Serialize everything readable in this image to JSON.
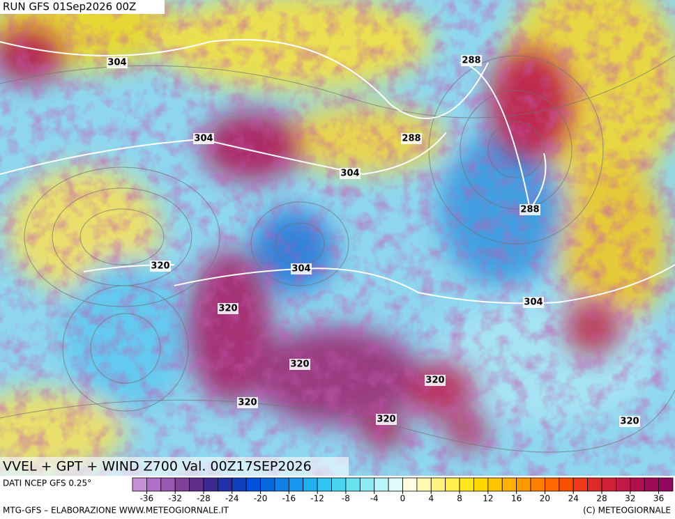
{
  "header": {
    "title": "RUN GFS 01Sep2026 00Z"
  },
  "map": {
    "caption": "VVEL + GPT + WIND Z700 Val. 00Z17SEP2026",
    "contour_labels": [
      304,
      304,
      288,
      288,
      304,
      288,
      320,
      304,
      320,
      304,
      320,
      320,
      320,
      320,
      320
    ]
  },
  "legend": {
    "source": "DATI NCEP GFS 0.25°",
    "bins": [
      -38,
      -36,
      -34,
      -32,
      -30,
      -28,
      -26,
      -24,
      -22,
      -20,
      -18,
      -16,
      -14,
      -12,
      -10,
      -8,
      -6,
      -4,
      -2,
      0,
      2,
      4,
      6,
      8,
      10,
      12,
      14,
      16,
      18,
      20,
      22,
      24,
      26,
      28,
      30,
      32,
      34,
      36,
      38
    ],
    "colors": [
      "#c890d8",
      "#b070c8",
      "#9858b0",
      "#804098",
      "#602c88",
      "#3c2890",
      "#2030a8",
      "#1040c0",
      "#0050d8",
      "#0868e0",
      "#1080e8",
      "#1898f0",
      "#20b0f0",
      "#30c4f0",
      "#48d4f0",
      "#68e0f0",
      "#90ecf4",
      "#b8f4f8",
      "#e0fcfc",
      "#fffce0",
      "#fff8b0",
      "#fff480",
      "#fff050",
      "#ffe820",
      "#ffd800",
      "#ffc400",
      "#ffb000",
      "#ff9800",
      "#ff8000",
      "#ff6800",
      "#f85000",
      "#f03818",
      "#e02828",
      "#d02038",
      "#c01848",
      "#b01050",
      "#a00858",
      "#900860"
    ],
    "ticks": [
      -36,
      -32,
      -28,
      -24,
      -20,
      -16,
      -12,
      -8,
      -4,
      0,
      4,
      8,
      12,
      16,
      20,
      24,
      28,
      32,
      36
    ]
  },
  "footer": {
    "left": "MTG-GFS – ELABORAZIONE WWW.METEOGIORNALE.IT",
    "right": "(C) METEOGIORNALE"
  }
}
